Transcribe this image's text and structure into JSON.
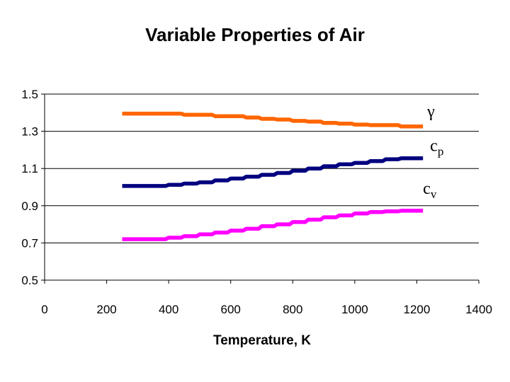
{
  "chart_data": {
    "type": "line",
    "title": "Variable Properties of Air",
    "xlabel": "Temperature, K",
    "ylabel": "",
    "xlim": [
      0,
      1400
    ],
    "ylim": [
      0.5,
      1.5
    ],
    "x_ticks": [
      "0",
      "200",
      "400",
      "600",
      "800",
      "1000",
      "1200",
      "1400"
    ],
    "y_ticks": [
      "0.5",
      "0.7",
      "0.9",
      "1.1",
      "1.3",
      "1.5"
    ],
    "grid": "horizontal",
    "legend": "inline labels at right end of each line",
    "x": [
      250,
      300,
      350,
      400,
      450,
      500,
      550,
      600,
      650,
      700,
      750,
      800,
      850,
      900,
      950,
      1000,
      1050,
      1100,
      1150,
      1200,
      1220
    ],
    "series": [
      {
        "name": "gamma",
        "label_main": "γ",
        "label_sub": "",
        "color": "#FF6600",
        "values": [
          1.395,
          1.395,
          1.395,
          1.395,
          1.389,
          1.389,
          1.381,
          1.381,
          1.374,
          1.367,
          1.363,
          1.356,
          1.352,
          1.345,
          1.341,
          1.336,
          1.333,
          1.333,
          1.326,
          1.326,
          1.326
        ]
      },
      {
        "name": "cp",
        "label_main": "c",
        "label_sub": "p",
        "color": "#000080",
        "values": [
          1.006,
          1.006,
          1.006,
          1.012,
          1.019,
          1.026,
          1.036,
          1.046,
          1.056,
          1.066,
          1.076,
          1.088,
          1.1,
          1.112,
          1.123,
          1.13,
          1.14,
          1.15,
          1.155,
          1.155,
          1.155
        ]
      },
      {
        "name": "cv",
        "label_main": "c",
        "label_sub": "v",
        "color": "#FF00FF",
        "values": [
          0.72,
          0.72,
          0.72,
          0.728,
          0.736,
          0.746,
          0.756,
          0.766,
          0.776,
          0.79,
          0.8,
          0.812,
          0.825,
          0.838,
          0.848,
          0.858,
          0.866,
          0.87,
          0.873,
          0.873,
          0.873
        ]
      }
    ]
  }
}
